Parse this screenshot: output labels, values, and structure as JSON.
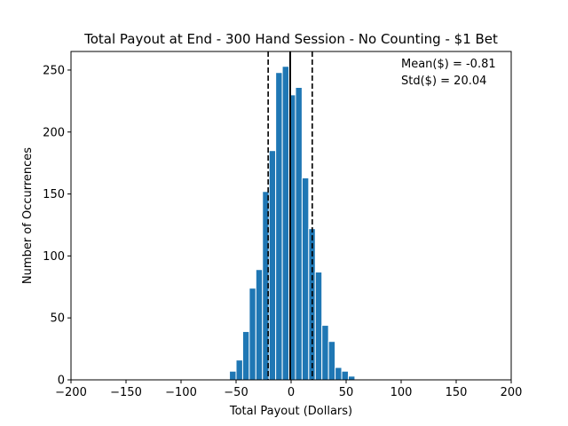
{
  "chart_data": {
    "type": "bar",
    "title": "Total Payout at End - 300 Hand Session - No Counting - $1 Bet",
    "xlabel": "Total Payout (Dollars)",
    "ylabel": "Number of Occurrences",
    "xlim": [
      -200,
      200
    ],
    "ylim": [
      0,
      265
    ],
    "x_ticks": [
      -200,
      -150,
      -100,
      -50,
      0,
      50,
      100,
      150,
      200
    ],
    "x_tick_labels": [
      "−200",
      "−150",
      "−100",
      "−50",
      "0",
      "50",
      "100",
      "150",
      "200"
    ],
    "y_ticks": [
      0,
      50,
      100,
      150,
      200,
      250
    ],
    "y_tick_labels": [
      "0",
      "50",
      "100",
      "150",
      "200",
      "250"
    ],
    "bin_width": 6,
    "bar_color": "#1f77b4",
    "bins": [
      {
        "x0": -56,
        "value": 7
      },
      {
        "x0": -50,
        "value": 16
      },
      {
        "x0": -44,
        "value": 39
      },
      {
        "x0": -38,
        "value": 74
      },
      {
        "x0": -32,
        "value": 89
      },
      {
        "x0": -26,
        "value": 152
      },
      {
        "x0": -20,
        "value": 185
      },
      {
        "x0": -14,
        "value": 248
      },
      {
        "x0": -8,
        "value": 253
      },
      {
        "x0": -2,
        "value": 230
      },
      {
        "x0": 4,
        "value": 236
      },
      {
        "x0": 10,
        "value": 163
      },
      {
        "x0": 16,
        "value": 122
      },
      {
        "x0": 22,
        "value": 87
      },
      {
        "x0": 28,
        "value": 44
      },
      {
        "x0": 34,
        "value": 31
      },
      {
        "x0": 40,
        "value": 10
      },
      {
        "x0": 46,
        "value": 7
      },
      {
        "x0": 52,
        "value": 3
      }
    ],
    "reference_lines": [
      {
        "name": "mean-line",
        "x": -0.81,
        "style": "solid",
        "color": "#000000"
      },
      {
        "name": "std-lower-line",
        "x": -20.85,
        "style": "dashed",
        "color": "#000000"
      },
      {
        "name": "std-upper-line",
        "x": 19.23,
        "style": "dashed",
        "color": "#000000"
      }
    ],
    "annotations": {
      "mean_text": "Mean($) = -0.81",
      "std_text": "Std($) = 20.04",
      "placement": "top-right"
    }
  }
}
